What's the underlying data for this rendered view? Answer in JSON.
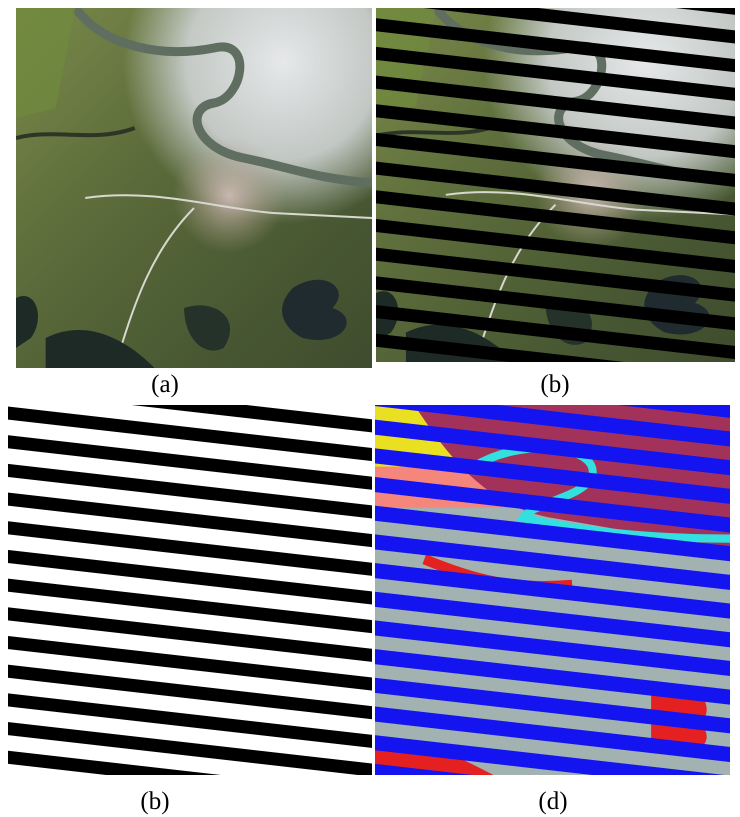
{
  "panels": [
    {
      "caption": "(a)"
    },
    {
      "caption": "(b)"
    },
    {
      "caption": "(b)"
    },
    {
      "caption": "(d)"
    }
  ]
}
